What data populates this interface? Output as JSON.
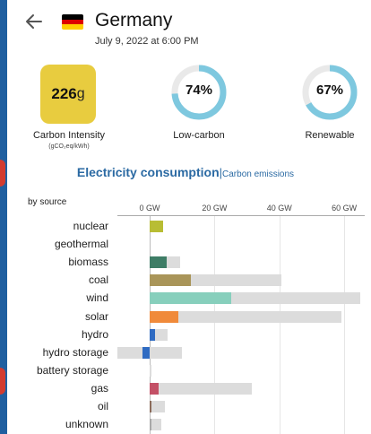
{
  "header": {
    "zone_name": "Germany",
    "datetime": "July 9, 2022 at 6:00 PM"
  },
  "metrics": {
    "carbon_intensity": {
      "value": "226",
      "unit": "g",
      "label": "Carbon Intensity",
      "sublabel": "(gCO₂eq/kWh)",
      "color": "#e8cc3f"
    },
    "low_carbon": {
      "value": "74%",
      "fraction": 0.74,
      "label": "Low-carbon"
    },
    "renewable": {
      "value": "67%",
      "fraction": 0.67,
      "label": "Renewable"
    },
    "ring_color": "#7ec8df",
    "ring_track_color": "#e9e9e9"
  },
  "tabs": {
    "active": "Electricity consumption",
    "separator": "|",
    "other": "Carbon emissions"
  },
  "chart_data": {
    "type": "bar",
    "title": "Electricity consumption",
    "ylabel": "by source",
    "unit": "GW",
    "xlim": [
      -10,
      65
    ],
    "ticks": [
      {
        "value": 0,
        "label": "0 GW"
      },
      {
        "value": 20,
        "label": "20 GW"
      },
      {
        "value": 40,
        "label": "40 GW"
      },
      {
        "value": 60,
        "label": "60 GW"
      }
    ],
    "sources": [
      {
        "name": "nuclear",
        "production": 4.2,
        "capacity_min": 0,
        "capacity_max": 0,
        "color": "#b8bd34"
      },
      {
        "name": "geothermal",
        "production": 0,
        "capacity_min": 0,
        "capacity_max": 0,
        "color": "#a43a2b"
      },
      {
        "name": "biomass",
        "production": 5.2,
        "capacity_min": 0,
        "capacity_max": 9.5,
        "color": "#3e7d66"
      },
      {
        "name": "coal",
        "production": 12.7,
        "capacity_min": 0,
        "capacity_max": 40.5,
        "color": "#a99559"
      },
      {
        "name": "wind",
        "production": 25.0,
        "capacity_min": 0,
        "capacity_max": 65.0,
        "color": "#87cfbc"
      },
      {
        "name": "solar",
        "production": 8.8,
        "capacity_min": 0,
        "capacity_max": 59.0,
        "color": "#f08a3a"
      },
      {
        "name": "hydro",
        "production": 1.6,
        "capacity_min": 0,
        "capacity_max": 5.5,
        "color": "#2f6bc2"
      },
      {
        "name": "hydro storage",
        "production": -2.2,
        "capacity_min": -10,
        "capacity_max": 10.0,
        "color": "#2f6bc2"
      },
      {
        "name": "battery storage",
        "production": 0,
        "capacity_min": 0,
        "capacity_max": 0.4,
        "color": "#8a8a8a"
      },
      {
        "name": "gas",
        "production": 2.8,
        "capacity_min": 0,
        "capacity_max": 31.5,
        "color": "#c35066"
      },
      {
        "name": "oil",
        "production": 0.4,
        "capacity_min": 0,
        "capacity_max": 4.6,
        "color": "#8b6b5a"
      },
      {
        "name": "unknown",
        "production": 0.3,
        "capacity_min": 0,
        "capacity_max": 3.7,
        "color": "#a8a8a8"
      }
    ]
  }
}
